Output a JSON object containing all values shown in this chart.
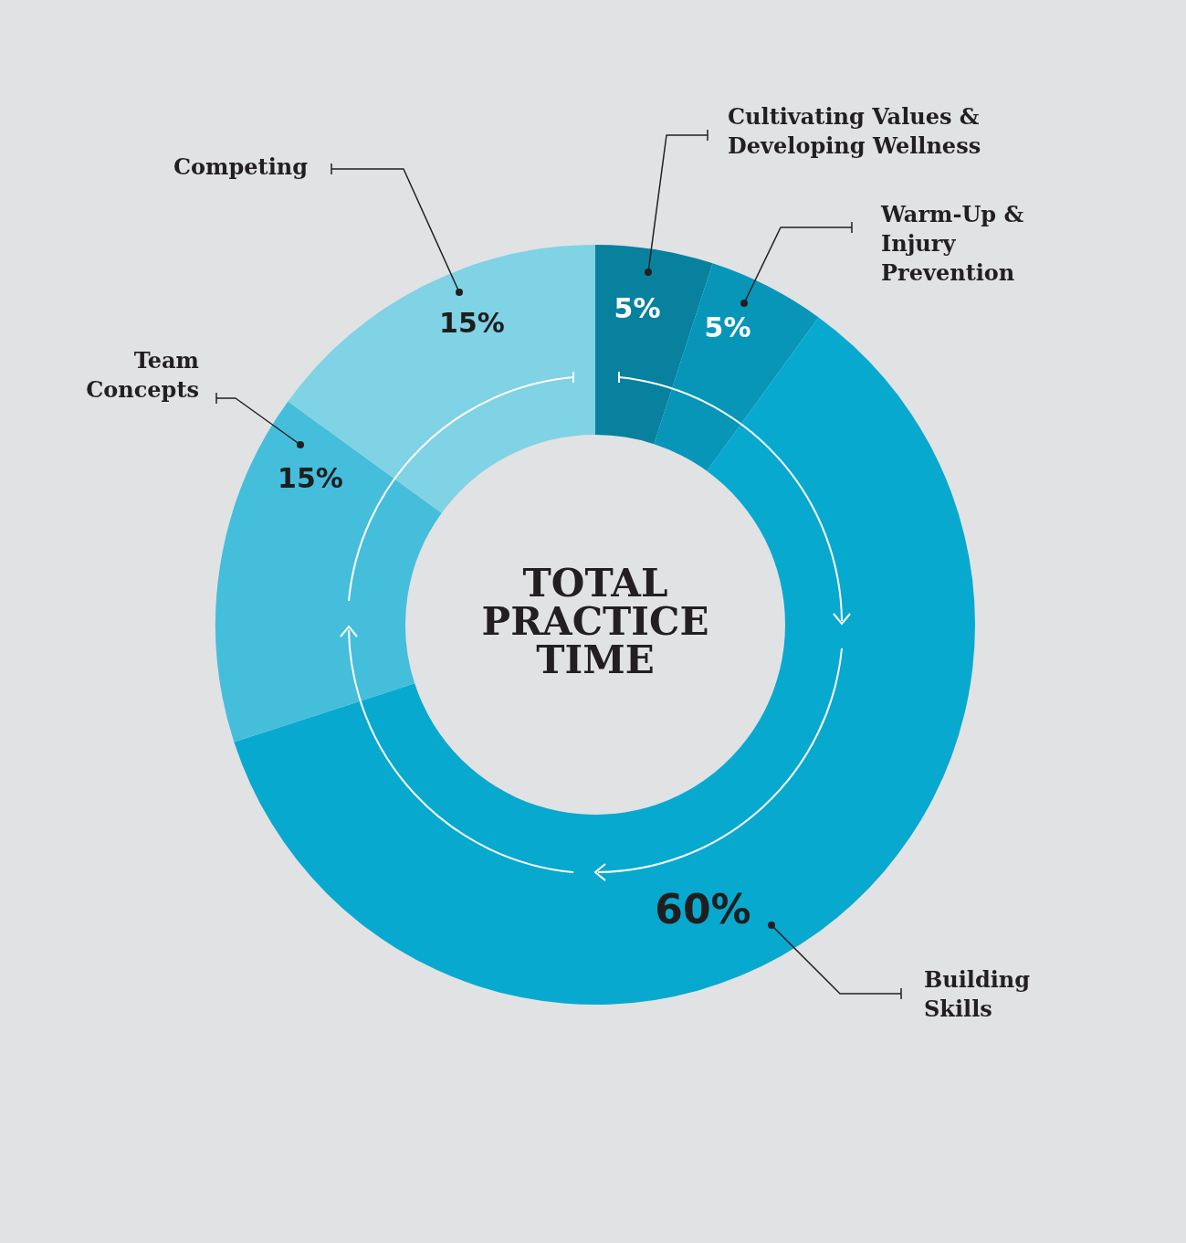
{
  "chart_data": {
    "type": "donut",
    "title": "TOTAL PRACTICE TIME",
    "categories": [
      "Cultivating Values & Developing Wellness",
      "Warm-Up & Injury Prevention",
      "Building Skills",
      "Team Concepts",
      "Competing"
    ],
    "values": [
      5,
      5,
      60,
      15,
      15
    ],
    "colors": [
      "#07819e",
      "#0796b8",
      "#08a9cf",
      "#44bedb",
      "#80d2e5"
    ],
    "value_labels": [
      "5%",
      "5%",
      "60%",
      "15%",
      "15%"
    ]
  }
}
